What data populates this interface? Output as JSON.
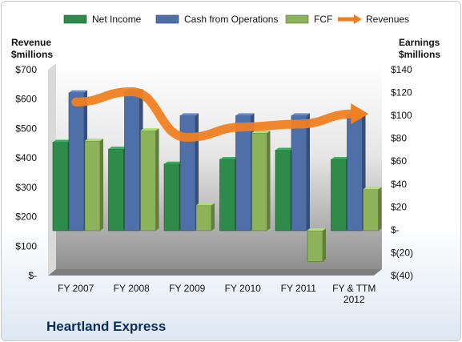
{
  "chart_data": {
    "type": "bar",
    "title": "Heartland Express",
    "categories": [
      "FY 2007",
      "FY 2008",
      "FY 2009",
      "FY 2010",
      "FY 2011",
      "FY & TTM 2012"
    ],
    "left_axis": {
      "label_line1": "Revenue",
      "label_line2": "$millions",
      "ylim": [
        0,
        700
      ],
      "ticks": [
        0,
        100,
        200,
        300,
        400,
        500,
        600,
        700
      ],
      "tick_labels": [
        "$-",
        "$100",
        "$200",
        "$300",
        "$400",
        "$500",
        "$600",
        "$700"
      ]
    },
    "right_axis": {
      "label_line1": "Earnings",
      "label_line2": "$millions",
      "ylim": [
        -40,
        140
      ],
      "ticks": [
        -40,
        -20,
        0,
        20,
        40,
        60,
        80,
        100,
        120,
        140
      ],
      "tick_labels": [
        "$(40)",
        "$(20)",
        "$-",
        "$20",
        "$40",
        "$60",
        "$80",
        "$100",
        "$120",
        "$140"
      ]
    },
    "series": [
      {
        "name": "Net Income",
        "type": "bar",
        "axis": "right",
        "color": "#2e8b4a",
        "values": [
          77,
          71,
          58,
          62,
          70,
          62
        ]
      },
      {
        "name": "Cash from Operations",
        "type": "bar",
        "axis": "right",
        "color": "#4f6fa8",
        "values": [
          120,
          121,
          100,
          100,
          100,
          101
        ]
      },
      {
        "name": "FCF",
        "type": "bar",
        "axis": "right",
        "color": "#8db35a",
        "values": [
          78,
          87,
          22,
          85,
          -27,
          36
        ]
      },
      {
        "name": "Revenues",
        "type": "line",
        "axis": "left",
        "color": "#f07f21",
        "values": [
          590,
          625,
          470,
          505,
          515,
          550
        ]
      }
    ],
    "legend_position": "top",
    "grid": false,
    "colors": {
      "plot_top": "#ffffff",
      "plot_bottom": "#8f8f8f"
    }
  }
}
